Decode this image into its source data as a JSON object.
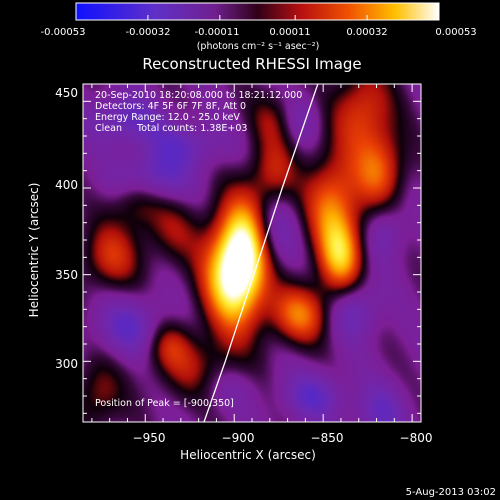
{
  "colorbar": {
    "tick_labels": [
      "-0.00053",
      "-0.00032",
      "-0.00011",
      "0.00011",
      "0.00032",
      "0.00053"
    ],
    "range": [
      -0.00053,
      0.00053
    ],
    "unit_label": "(photons cm⁻² s⁻¹ asec⁻²)",
    "colormap": "rainbow-like: blue, purple, red, orange, yellow, white"
  },
  "chart_data": {
    "type": "heatmap",
    "title": "Reconstructed RHESSI Image",
    "xlabel": "Heliocentric X (arcsec)",
    "ylabel": "Heliocentric Y (arcsec)",
    "xlim": [
      -985,
      -795
    ],
    "ylim": [
      265,
      460
    ],
    "xticks": [
      -950,
      -900,
      -850,
      -800
    ],
    "yticks": [
      300,
      350,
      400,
      450
    ],
    "xtick_labels": [
      "−950",
      "−900",
      "−850",
      "−800"
    ],
    "ytick_labels": [
      "300",
      "350",
      "400",
      "450"
    ],
    "annotations": [
      "20-Sep-2010 18:20:08.000 to 18:21:12.000",
      "Detectors: 4F 5F 6F 7F 8F, Att 0",
      "Energy Range: 12.0 - 25.0 keV",
      "Clean     Total counts: 1.38E+03"
    ],
    "peak_label": "Position of Peak = [-900,350]",
    "peak_position": [
      -900,
      350
    ],
    "limb_curve": [
      [
        -917,
        265
      ],
      [
        -905,
        300
      ],
      [
        -889,
        350
      ],
      [
        -873,
        400
      ],
      [
        -853,
        460
      ]
    ],
    "sources": [
      {
        "x": -900,
        "y": 350,
        "sx": 12,
        "sy": 22,
        "amp": 1.0
      },
      {
        "x": -893,
        "y": 370,
        "sx": 10,
        "sy": 22,
        "amp": 0.5
      },
      {
        "x": -920,
        "y": 295,
        "sx": 18,
        "sy": 14,
        "amp": 0.3
      },
      {
        "x": -878,
        "y": 408,
        "sx": 9,
        "sy": 14,
        "amp": 0.35
      },
      {
        "x": -845,
        "y": 392,
        "sx": 11,
        "sy": 20,
        "amp": 0.55
      },
      {
        "x": -840,
        "y": 360,
        "sx": 9,
        "sy": 16,
        "amp": 0.65
      },
      {
        "x": -863,
        "y": 327,
        "sx": 12,
        "sy": 12,
        "amp": 0.55
      },
      {
        "x": -828,
        "y": 445,
        "sx": 12,
        "sy": 18,
        "amp": 0.45
      },
      {
        "x": -818,
        "y": 410,
        "sx": 10,
        "sy": 16,
        "amp": 0.5
      },
      {
        "x": -970,
        "y": 360,
        "sx": 12,
        "sy": 14,
        "amp": 0.4
      },
      {
        "x": -955,
        "y": 395,
        "sx": 10,
        "sy": 12,
        "amp": 0.35
      },
      {
        "x": -935,
        "y": 375,
        "sx": 12,
        "sy": 14,
        "amp": 0.25
      },
      {
        "x": -977,
        "y": 280,
        "sx": 10,
        "sy": 15,
        "amp": 0.3
      },
      {
        "x": -937,
        "y": 310,
        "sx": 9,
        "sy": 10,
        "amp": 0.3
      },
      {
        "x": -878,
        "y": 440,
        "sx": 10,
        "sy": 12,
        "amp": 0.25
      },
      {
        "x": -948,
        "y": 405,
        "sx": 14,
        "sy": 10,
        "amp": -0.45
      },
      {
        "x": -928,
        "y": 425,
        "sx": 16,
        "sy": 10,
        "amp": -0.3
      },
      {
        "x": -958,
        "y": 320,
        "sx": 14,
        "sy": 12,
        "amp": -0.35
      },
      {
        "x": -855,
        "y": 280,
        "sx": 12,
        "sy": 10,
        "amp": -0.35
      },
      {
        "x": -833,
        "y": 330,
        "sx": 10,
        "sy": 12,
        "amp": -0.35
      },
      {
        "x": -878,
        "y": 375,
        "sx": 9,
        "sy": 16,
        "amp": -0.3
      },
      {
        "x": -818,
        "y": 270,
        "sx": 10,
        "sy": 12,
        "amp": -0.3
      },
      {
        "x": -962,
        "y": 440,
        "sx": 14,
        "sy": 10,
        "amp": -0.35
      },
      {
        "x": -905,
        "y": 285,
        "sx": 12,
        "sy": 10,
        "amp": -0.2
      },
      {
        "x": -815,
        "y": 375,
        "sx": 8,
        "sy": 12,
        "amp": -0.25
      },
      {
        "x": -862,
        "y": 440,
        "sx": 8,
        "sy": 10,
        "amp": -0.2
      }
    ]
  },
  "footer": {
    "date": "5-Aug-2013 03:02"
  }
}
